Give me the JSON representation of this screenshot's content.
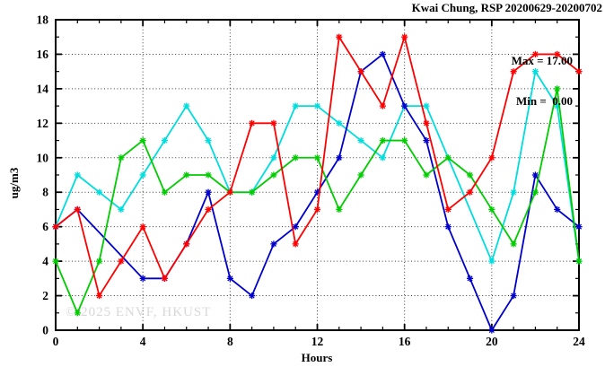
{
  "chart_data": {
    "type": "line",
    "title": "Kwai Chung, RSP 20200629-20200702",
    "xlabel": "Hours",
    "ylabel": "ug/m3",
    "watermark": "© 2025 ENVF, HKUST",
    "annotations": {
      "max": "Max = 17.00",
      "min": "Min =  0.00"
    },
    "xlim": [
      0,
      24
    ],
    "ylim": [
      0,
      18
    ],
    "xticks_major": [
      0,
      4,
      8,
      12,
      16,
      20,
      24
    ],
    "xticks_minor_step": 1,
    "yticks_major": [
      0,
      2,
      4,
      6,
      8,
      10,
      12,
      14,
      16,
      18
    ],
    "yticks_minor_step": 1,
    "grid": {
      "x_at": [
        4,
        8,
        12,
        16,
        20
      ],
      "y_at": [
        2,
        4,
        6,
        8,
        10,
        12,
        14,
        16
      ]
    },
    "legend_position": "none",
    "x": [
      0,
      1,
      2,
      3,
      4,
      5,
      6,
      7,
      8,
      9,
      10,
      11,
      12,
      13,
      14,
      15,
      16,
      17,
      18,
      19,
      20,
      21,
      22,
      23,
      24
    ],
    "draw_order": [
      "cyan",
      "blue",
      "green",
      "red"
    ],
    "series": [
      {
        "name": "red",
        "color": "#ff0000",
        "values": [
          6,
          7,
          2,
          4,
          6,
          3,
          5,
          7,
          8,
          12,
          12,
          5,
          7,
          17,
          15,
          13,
          17,
          12,
          7,
          8,
          10,
          15,
          16,
          16,
          15
        ]
      },
      {
        "name": "green",
        "color": "#00cc00",
        "values": [
          4,
          1,
          4,
          10,
          11,
          8,
          9,
          9,
          8,
          8,
          9,
          10,
          10,
          7,
          9,
          11,
          11,
          9,
          10,
          9,
          7,
          5,
          8,
          14,
          4
        ]
      },
      {
        "name": "cyan",
        "color": "#00dddd",
        "values": [
          6,
          9,
          8,
          7,
          9,
          11,
          13,
          11,
          8,
          8,
          10,
          13,
          13,
          12,
          11,
          10,
          13,
          13,
          null,
          null,
          4,
          8,
          15,
          13,
          4
        ]
      },
      {
        "name": "blue",
        "color": "#0000cd",
        "values": [
          6,
          7,
          null,
          null,
          3,
          3,
          5,
          8,
          3,
          2,
          5,
          6,
          8,
          10,
          15,
          16,
          13,
          11,
          6,
          3,
          0,
          2,
          9,
          7,
          6
        ]
      }
    ]
  }
}
